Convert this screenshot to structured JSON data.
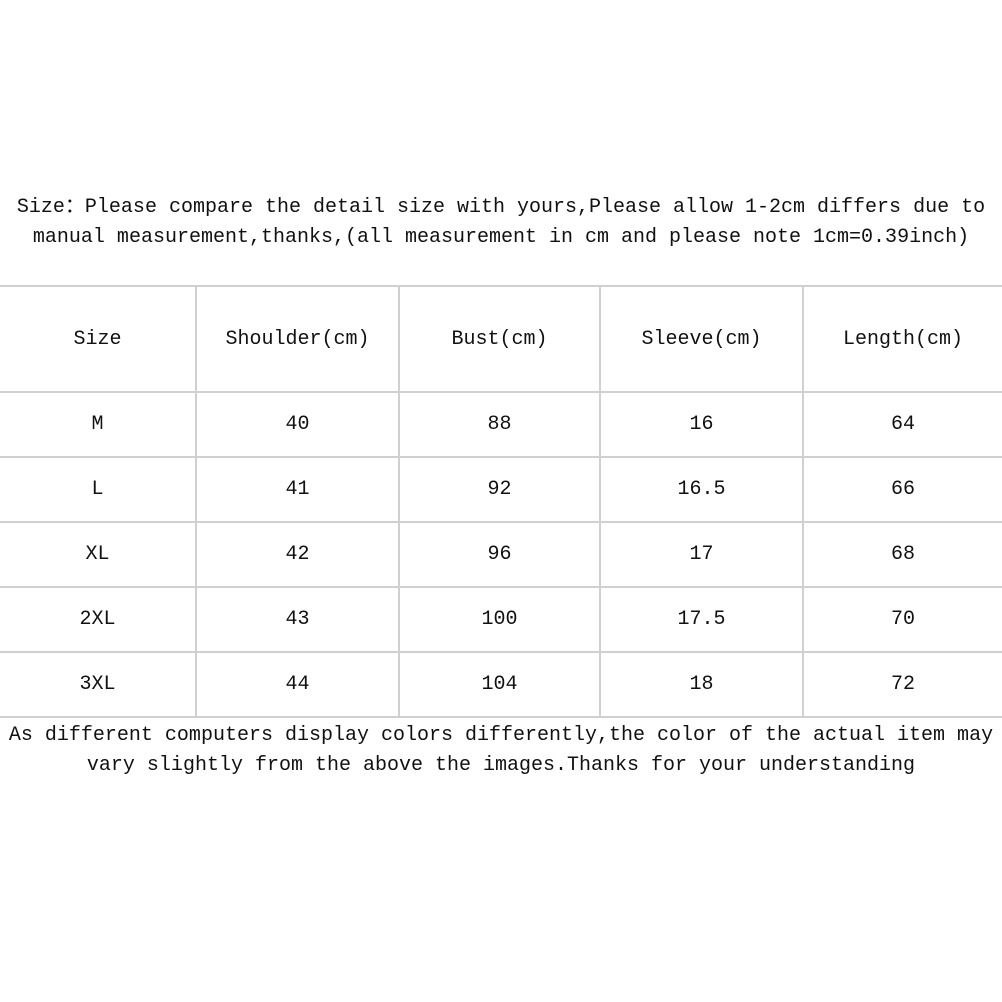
{
  "top_note": "Size：Please compare the detail size with yours,Please allow 1-2cm differs due to manual measurement,thanks,(all measurement in cm and please note 1cm=0.39inch)",
  "table": {
    "headers": [
      "Size",
      "Shoulder(cm)",
      "Bust(cm)",
      "Sleeve(cm)",
      "Length(cm)"
    ],
    "rows": [
      [
        "M",
        "40",
        "88",
        "16",
        "64"
      ],
      [
        "L",
        "41",
        "92",
        "16.5",
        "66"
      ],
      [
        "XL",
        "42",
        "96",
        "17",
        "68"
      ],
      [
        "2XL",
        "43",
        "100",
        "17.5",
        "70"
      ],
      [
        "3XL",
        "44",
        "104",
        "18",
        "72"
      ]
    ]
  },
  "bottom_note": "As different computers display colors differently,the color of the actual item may vary slightly from the above the images.Thanks for your understanding",
  "colors": {
    "border": "#d0d0d0",
    "text": "#111111"
  }
}
